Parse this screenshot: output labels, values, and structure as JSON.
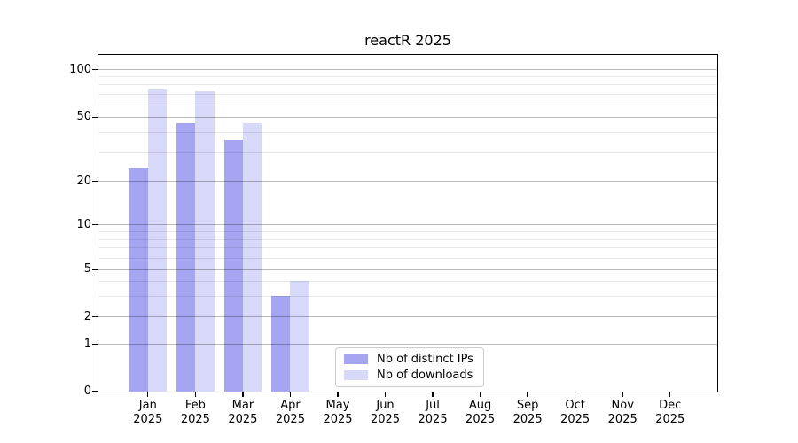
{
  "chart_data": {
    "type": "bar",
    "title": "reactR 2025",
    "categories": [
      "Jan",
      "Feb",
      "Mar",
      "Apr",
      "May",
      "Jun",
      "Jul",
      "Aug",
      "Sep",
      "Oct",
      "Nov",
      "Dec"
    ],
    "x_year_label": "2025",
    "series": [
      {
        "name": "Nb of distinct IPs",
        "color": "#a5a5f2",
        "values": [
          24,
          46,
          36,
          3,
          null,
          null,
          null,
          null,
          null,
          null,
          null,
          null
        ]
      },
      {
        "name": "Nb of downloads",
        "color": "#d8d8f8",
        "values": [
          75,
          73,
          46,
          4,
          null,
          null,
          null,
          null,
          null,
          null,
          null,
          null
        ]
      }
    ],
    "y_axis": {
      "tick_values": [
        0,
        1,
        2,
        5,
        10,
        20,
        50,
        100
      ],
      "tick_labels": [
        "0",
        "1",
        "2",
        "5",
        "10",
        "20",
        "50",
        "100"
      ],
      "minor_tick_values": [
        3,
        4,
        6,
        7,
        8,
        9,
        30,
        40,
        60,
        70,
        80,
        90
      ],
      "scale": "log-like with zero baseline",
      "tick_fractions": {
        "0": 0,
        "1": 0.1406,
        "2": 0.2217,
        "5": 0.3621,
        "10": 0.4955,
        "20": 0.625,
        "50": 0.815,
        "100": 0.956
      },
      "ylim": [
        0,
        120
      ]
    },
    "x_axis": {
      "first_center_frac": 0.08,
      "center_step_frac": 0.0767,
      "bar_width_frac": 0.0306
    },
    "grid": "horizontal major and minor lines, drawn over bars",
    "legend_position": "lower center",
    "colors": {
      "major_grid": "#bababa",
      "minor_grid": "#e8e8e8",
      "spine": "#000000",
      "legend_border": "#cccccc",
      "background": "#ffffff"
    }
  }
}
